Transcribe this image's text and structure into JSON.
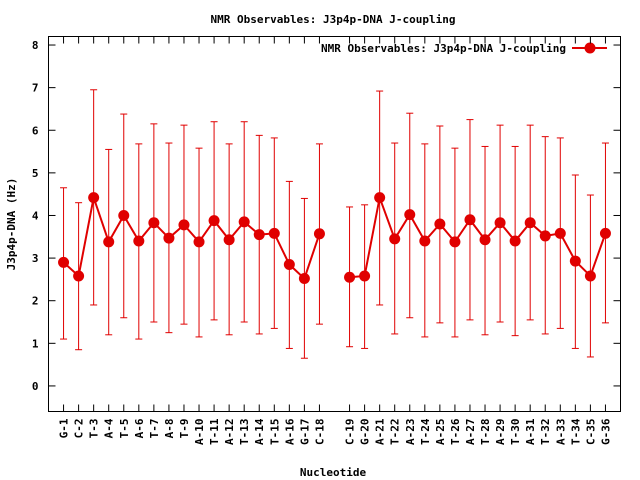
{
  "chart_data": {
    "type": "line",
    "title": "NMR Observables: J3p4p-DNA J-coupling",
    "xlabel": "Nucleotide",
    "ylabel": "J3p4p-DNA (Hz)",
    "ylim": [
      -0.6,
      8.2
    ],
    "yticks": [
      0,
      1,
      2,
      3,
      4,
      5,
      6,
      7,
      8
    ],
    "grid": false,
    "legend_position": "top-right",
    "line_color": "#e00000",
    "series": [
      {
        "name": "NMR Observables: J3p4p-DNA J-coupling",
        "points": [
          {
            "x": 1,
            "label": "G-1",
            "y": 2.9,
            "ylow": 1.1,
            "yhigh": 4.65
          },
          {
            "x": 2,
            "label": "C-2",
            "y": 2.58,
            "ylow": 0.85,
            "yhigh": 4.3
          },
          {
            "x": 3,
            "label": "T-3",
            "y": 4.42,
            "ylow": 1.9,
            "yhigh": 6.95
          },
          {
            "x": 4,
            "label": "A-4",
            "y": 3.38,
            "ylow": 1.2,
            "yhigh": 5.55
          },
          {
            "x": 5,
            "label": "T-5",
            "y": 4.0,
            "ylow": 1.6,
            "yhigh": 6.38
          },
          {
            "x": 6,
            "label": "A-6",
            "y": 3.4,
            "ylow": 1.1,
            "yhigh": 5.68
          },
          {
            "x": 7,
            "label": "T-7",
            "y": 3.83,
            "ylow": 1.5,
            "yhigh": 6.15
          },
          {
            "x": 8,
            "label": "A-8",
            "y": 3.47,
            "ylow": 1.25,
            "yhigh": 5.7
          },
          {
            "x": 9,
            "label": "T-9",
            "y": 3.78,
            "ylow": 1.45,
            "yhigh": 6.12
          },
          {
            "x": 10,
            "label": "A-10",
            "y": 3.38,
            "ylow": 1.15,
            "yhigh": 5.58
          },
          {
            "x": 11,
            "label": "T-11",
            "y": 3.88,
            "ylow": 1.55,
            "yhigh": 6.2
          },
          {
            "x": 12,
            "label": "A-12",
            "y": 3.43,
            "ylow": 1.2,
            "yhigh": 5.68
          },
          {
            "x": 13,
            "label": "T-13",
            "y": 3.85,
            "ylow": 1.5,
            "yhigh": 6.2
          },
          {
            "x": 14,
            "label": "A-14",
            "y": 3.55,
            "ylow": 1.22,
            "yhigh": 5.88
          },
          {
            "x": 15,
            "label": "T-15",
            "y": 3.58,
            "ylow": 1.35,
            "yhigh": 5.82
          },
          {
            "x": 16,
            "label": "A-16",
            "y": 2.85,
            "ylow": 0.88,
            "yhigh": 4.8
          },
          {
            "x": 17,
            "label": "G-17",
            "y": 2.52,
            "ylow": 0.65,
            "yhigh": 4.4
          },
          {
            "x": 18,
            "label": "C-18",
            "y": 3.57,
            "ylow": 1.45,
            "yhigh": 5.68
          },
          {
            "x": 20,
            "label": "C-19",
            "y": 2.55,
            "ylow": 0.92,
            "yhigh": 4.2
          },
          {
            "x": 21,
            "label": "G-20",
            "y": 2.58,
            "ylow": 0.88,
            "yhigh": 4.25
          },
          {
            "x": 22,
            "label": "A-21",
            "y": 4.42,
            "ylow": 1.9,
            "yhigh": 6.92
          },
          {
            "x": 23,
            "label": "T-22",
            "y": 3.45,
            "ylow": 1.22,
            "yhigh": 5.7
          },
          {
            "x": 24,
            "label": "A-23",
            "y": 4.02,
            "ylow": 1.6,
            "yhigh": 6.4
          },
          {
            "x": 25,
            "label": "T-24",
            "y": 3.4,
            "ylow": 1.15,
            "yhigh": 5.68
          },
          {
            "x": 26,
            "label": "A-25",
            "y": 3.8,
            "ylow": 1.48,
            "yhigh": 6.1
          },
          {
            "x": 27,
            "label": "T-26",
            "y": 3.38,
            "ylow": 1.15,
            "yhigh": 5.58
          },
          {
            "x": 28,
            "label": "A-27",
            "y": 3.9,
            "ylow": 1.55,
            "yhigh": 6.25
          },
          {
            "x": 29,
            "label": "T-28",
            "y": 3.43,
            "ylow": 1.2,
            "yhigh": 5.62
          },
          {
            "x": 30,
            "label": "A-29",
            "y": 3.83,
            "ylow": 1.5,
            "yhigh": 6.12
          },
          {
            "x": 31,
            "label": "T-30",
            "y": 3.4,
            "ylow": 1.18,
            "yhigh": 5.62
          },
          {
            "x": 32,
            "label": "A-31",
            "y": 3.83,
            "ylow": 1.55,
            "yhigh": 6.12
          },
          {
            "x": 33,
            "label": "T-32",
            "y": 3.52,
            "ylow": 1.22,
            "yhigh": 5.85
          },
          {
            "x": 34,
            "label": "A-33",
            "y": 3.58,
            "ylow": 1.35,
            "yhigh": 5.82
          },
          {
            "x": 35,
            "label": "T-34",
            "y": 2.93,
            "ylow": 0.88,
            "yhigh": 4.95
          },
          {
            "x": 36,
            "label": "C-35",
            "y": 2.58,
            "ylow": 0.68,
            "yhigh": 4.48
          },
          {
            "x": 37,
            "label": "G-36",
            "y": 3.58,
            "ylow": 1.48,
            "yhigh": 5.7
          }
        ]
      }
    ]
  }
}
